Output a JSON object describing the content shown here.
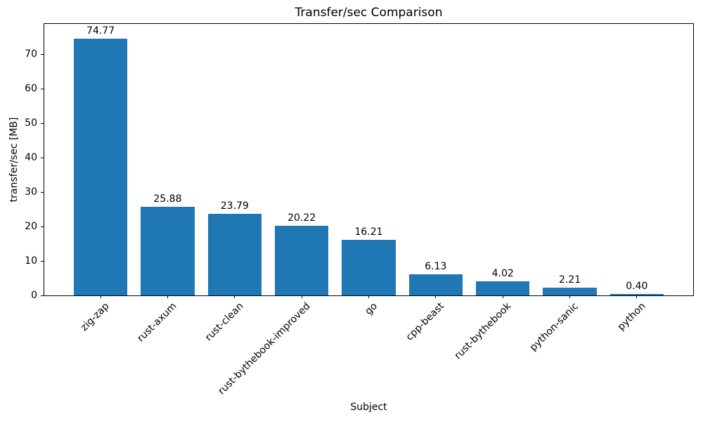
{
  "chart_data": {
    "type": "bar",
    "title": "Transfer/sec Comparison",
    "xlabel": "Subject",
    "ylabel": "transfer/sec [MB]",
    "categories": [
      "zig-zap",
      "rust-axum",
      "rust-clean",
      "rust-bythebook-improved",
      "go",
      "cpp-beast",
      "rust-bythebook",
      "python-sanic",
      "python"
    ],
    "values": [
      74.77,
      25.88,
      23.79,
      20.22,
      16.21,
      6.13,
      4.02,
      2.21,
      0.4
    ],
    "value_labels": [
      "74.77",
      "25.88",
      "23.79",
      "20.22",
      "16.21",
      "6.13",
      "4.02",
      "2.21",
      "0.40"
    ],
    "yticks": [
      0,
      10,
      20,
      30,
      40,
      50,
      60,
      70
    ],
    "ylim": [
      0,
      79
    ],
    "bar_color": "#1f77b4",
    "spine_color": "#000000",
    "text_color": "#000000",
    "xtick_rotation_deg": 45,
    "grid": false,
    "legend": null
  }
}
